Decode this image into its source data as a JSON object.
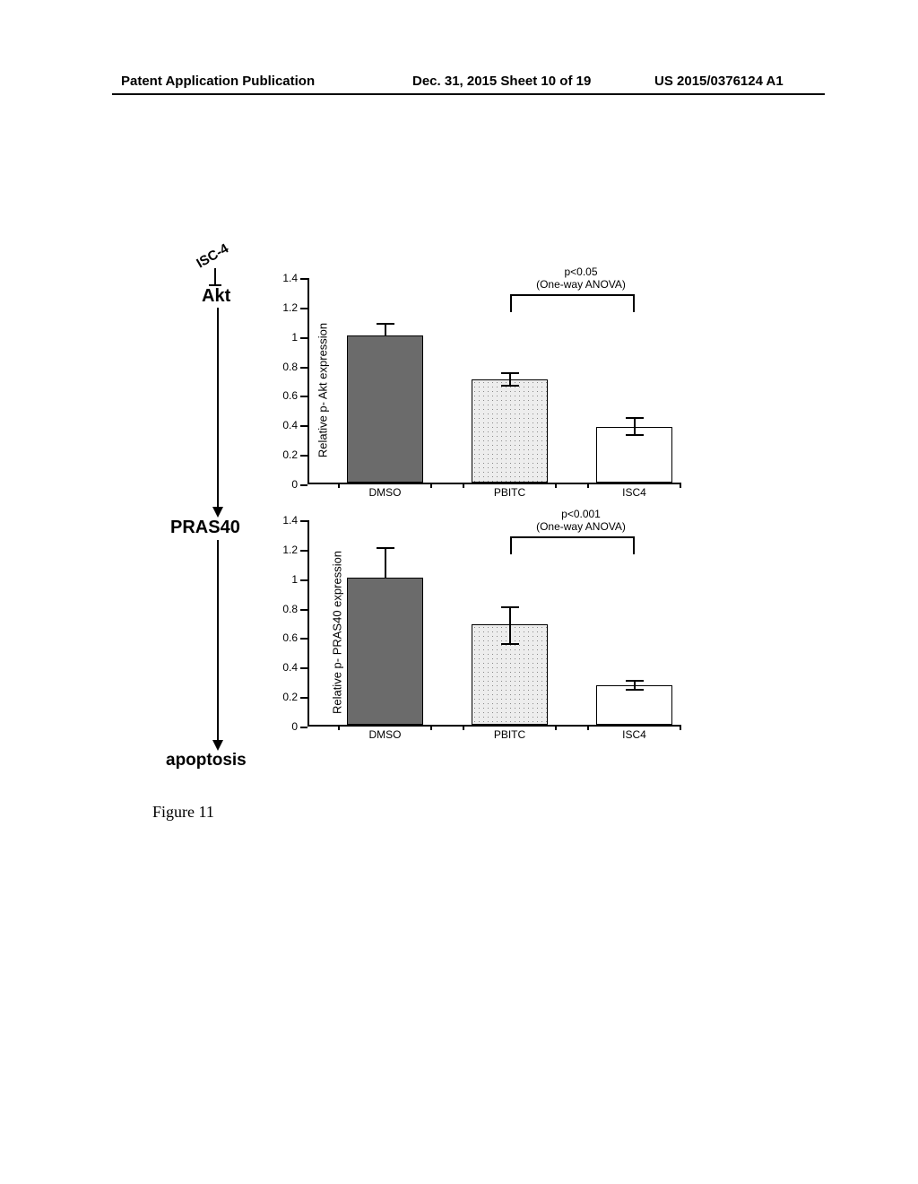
{
  "header": {
    "left": "Patent Application Publication",
    "middle": "Dec. 31, 2015  Sheet 10 of 19",
    "right": "US 2015/0376124 A1"
  },
  "pathway": {
    "inhibitor": "ISC-4",
    "node1": "Akt",
    "node2": "PRAS40",
    "end": "apoptosis"
  },
  "chart1": {
    "type": "bar",
    "y_label": "Relative p- Akt expression",
    "ylim": [
      0,
      1.4
    ],
    "ytick_step": 0.2,
    "y_ticks": [
      0,
      0.2,
      0.4,
      0.6,
      0.8,
      1,
      1.2,
      1.4
    ],
    "categories": [
      "DMSO",
      "PBITC",
      "ISC4"
    ],
    "values": [
      1.0,
      0.7,
      0.38
    ],
    "error_up": [
      0.08,
      0.04,
      0.06
    ],
    "error_down": [
      0,
      0.04,
      0.06
    ],
    "bar_colors": [
      "#6b6b6b",
      "#ededed",
      "#ffffff"
    ],
    "bar_patterns": [
      "solid",
      "dotted",
      "solid"
    ],
    "border_color": "#000000",
    "p_text_line1": "p<0.05",
    "p_text_line2": "(One-way ANOVA)",
    "background_color": "#ffffff",
    "bar_width_ratio": 0.65,
    "label_fontsize": 13
  },
  "chart2": {
    "type": "bar",
    "y_label": "Relative p- PRAS40 expression",
    "ylim": [
      0,
      1.4
    ],
    "ytick_step": 0.2,
    "y_ticks": [
      0,
      0.2,
      0.4,
      0.6,
      0.8,
      1,
      1.2,
      1.4
    ],
    "categories": [
      "DMSO",
      "PBITC",
      "ISC4"
    ],
    "values": [
      1.0,
      0.68,
      0.27
    ],
    "error_up": [
      0.2,
      0.12,
      0.03
    ],
    "error_down": [
      0,
      0.13,
      0.03
    ],
    "bar_colors": [
      "#6b6b6b",
      "#ededed",
      "#ffffff"
    ],
    "bar_patterns": [
      "solid",
      "dotted",
      "solid"
    ],
    "border_color": "#000000",
    "p_text_line1": "p<0.001",
    "p_text_line2": "(One-way ANOVA)",
    "background_color": "#ffffff",
    "bar_width_ratio": 0.65,
    "label_fontsize": 13
  },
  "caption": "Figure 11"
}
